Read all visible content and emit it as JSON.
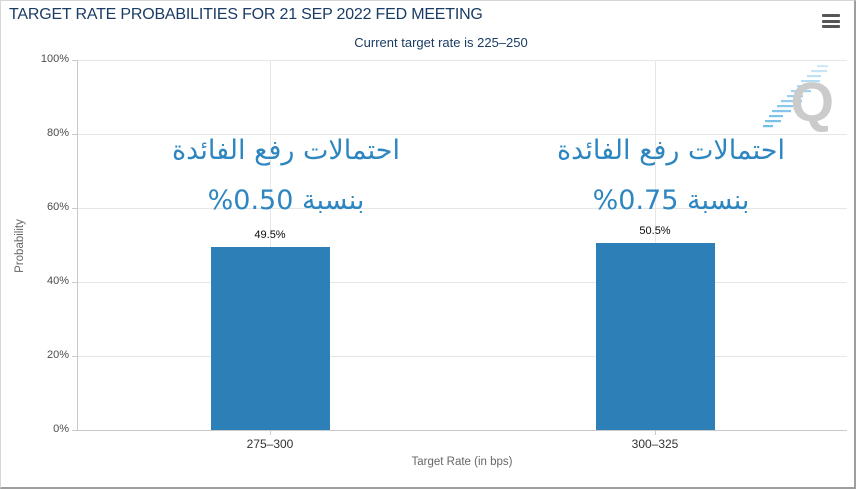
{
  "chart": {
    "menu_icon": "hamburger-icon",
    "watermark_letter": "Q"
  },
  "chart_data": {
    "type": "bar",
    "title": "TARGET RATE PROBABILITIES FOR 21 SEP 2022 FED MEETING",
    "subtitle": "Current target rate is 225–250",
    "categories": [
      "275–300",
      "300–325"
    ],
    "values": [
      49.5,
      50.5
    ],
    "value_labels": [
      "49.5%",
      "50.5%"
    ],
    "xlabel": "Target Rate (in bps)",
    "ylabel": "Probability",
    "ylim": [
      0,
      100
    ],
    "ytick_labels": [
      "0%",
      "20%",
      "40%",
      "60%",
      "80%",
      "100%"
    ],
    "grid": true,
    "legend_position": "none",
    "bar_color": "#2d7fb8",
    "annotation_color": "#2e86c1",
    "annotations": [
      {
        "category": "275–300",
        "lines": [
          "احتمالات رفع الفائدة",
          "بنسبة 0.50%"
        ]
      },
      {
        "category": "300–325",
        "lines": [
          "احتمالات رفع الفائدة",
          "بنسبة 0.75%"
        ]
      }
    ]
  }
}
